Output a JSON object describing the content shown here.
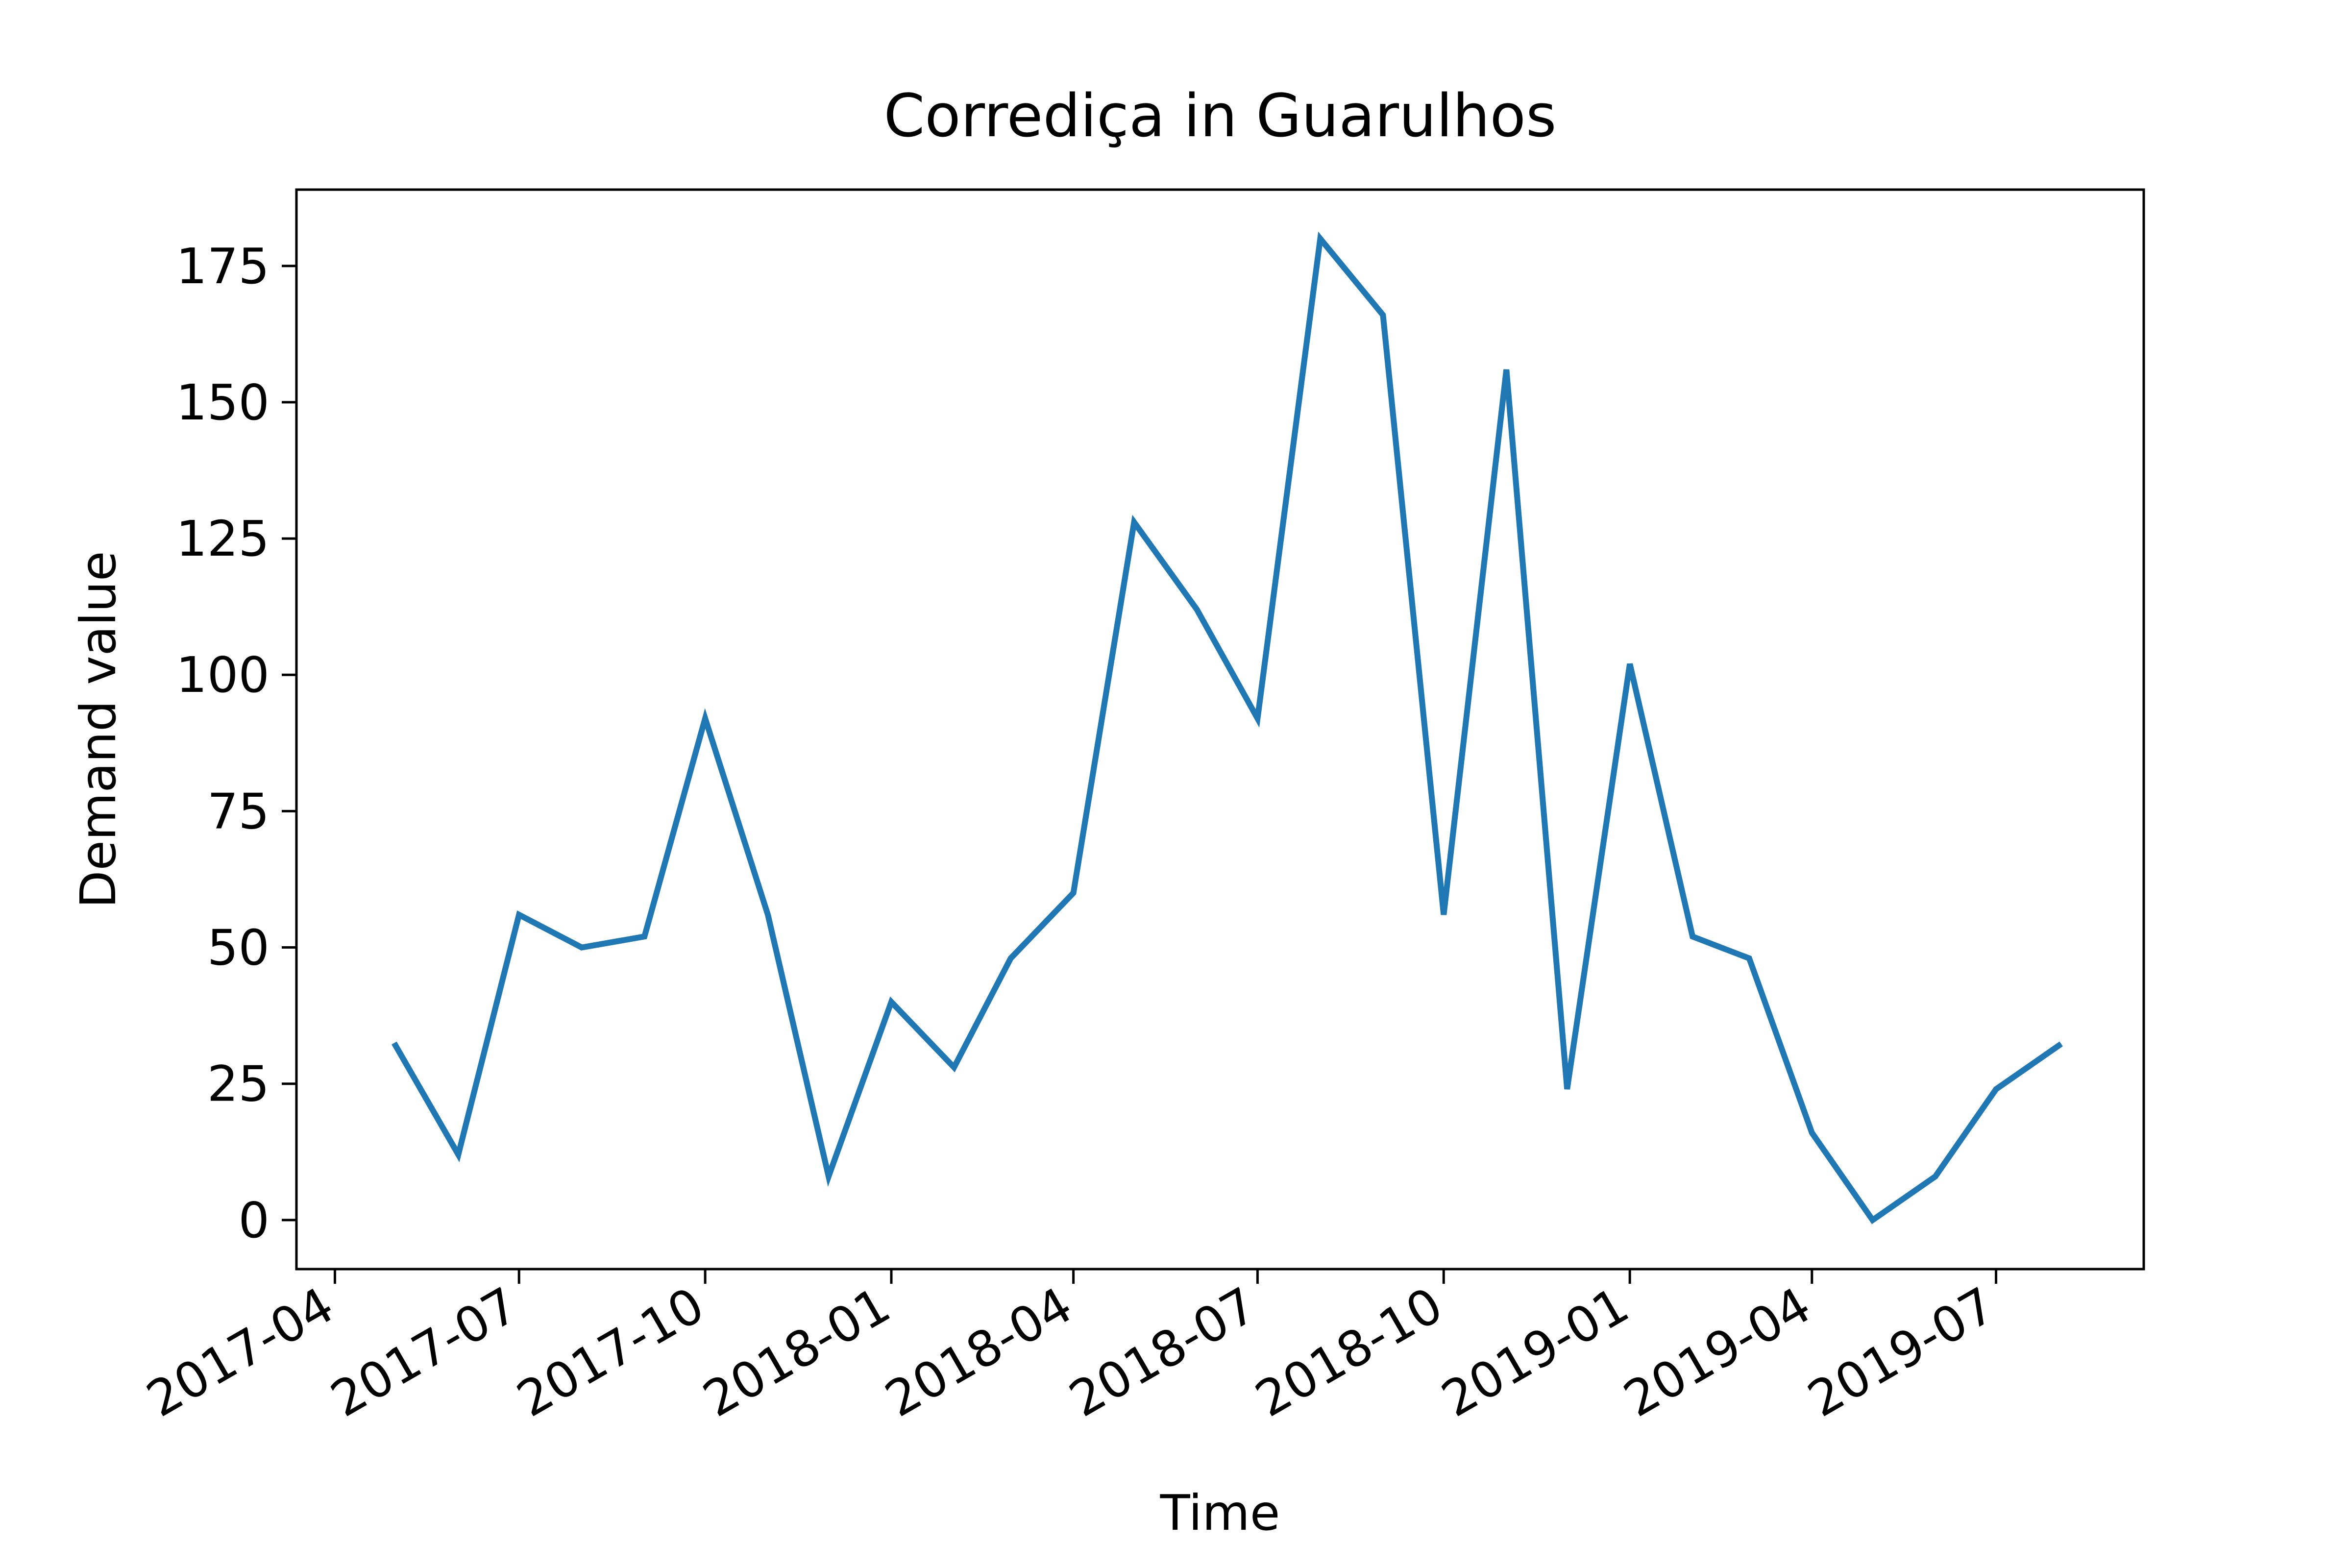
{
  "chart_data": {
    "type": "line",
    "title": "Corrediça in Guarulhos",
    "xlabel": "Time",
    "ylabel": "Demand value",
    "x_tick_labels": [
      "2017-04",
      "2017-07",
      "2017-10",
      "2018-01",
      "2018-04",
      "2018-07",
      "2018-10",
      "2019-01",
      "2019-04",
      "2019-07"
    ],
    "y_tick_labels": [
      "0",
      "25",
      "50",
      "75",
      "100",
      "125",
      "150",
      "175"
    ],
    "ylim": [
      -9,
      189
    ],
    "xlim": [
      "2017-03-13",
      "2019-09-12"
    ],
    "grid": false,
    "colors": {
      "line": "#1f77b4"
    },
    "series": [
      {
        "x": [
          "2017-05-01",
          "2017-06-01",
          "2017-07-01",
          "2017-08-01",
          "2017-09-01",
          "2017-10-01",
          "2017-11-01",
          "2017-12-01",
          "2018-01-01",
          "2018-02-01",
          "2018-03-01",
          "2018-04-01",
          "2018-05-01",
          "2018-06-01",
          "2018-07-01",
          "2018-08-01",
          "2018-09-01",
          "2018-10-01",
          "2018-11-01",
          "2018-12-01",
          "2019-01-01",
          "2019-02-01",
          "2019-03-01",
          "2019-04-01",
          "2019-05-01",
          "2019-06-01",
          "2019-07-01",
          "2019-08-01"
        ],
        "values": [
          32,
          12,
          56,
          50,
          52,
          92,
          56,
          8,
          40,
          28,
          48,
          60,
          128,
          112,
          92,
          180,
          166,
          56,
          156,
          24,
          102,
          52,
          48,
          16,
          0,
          8,
          24,
          32
        ]
      }
    ]
  }
}
